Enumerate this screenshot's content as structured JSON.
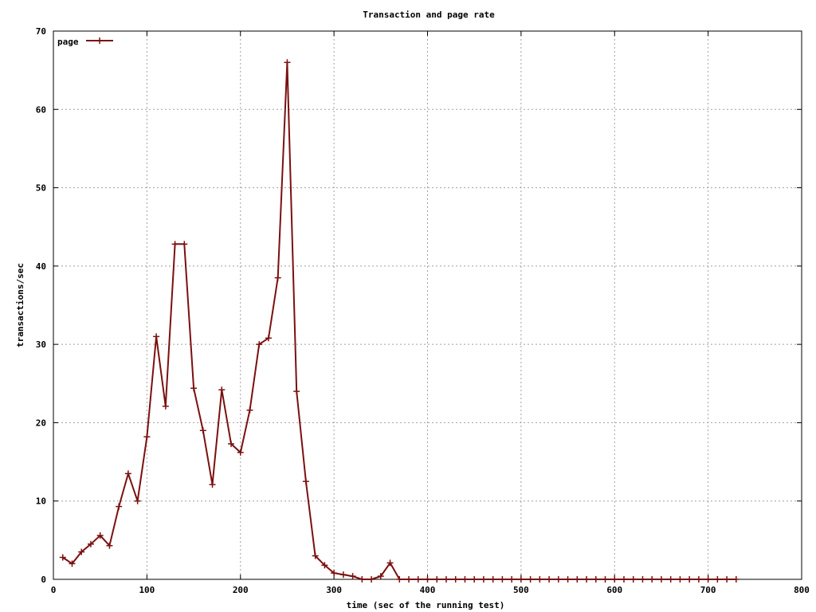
{
  "chart_data": {
    "type": "line",
    "title": "Transaction and page rate",
    "xlabel": "time (sec of the running test)",
    "ylabel": "transactions/sec",
    "xlim": [
      0,
      800
    ],
    "ylim": [
      0,
      70
    ],
    "xticks": [
      0,
      100,
      200,
      300,
      400,
      500,
      600,
      700,
      800
    ],
    "yticks": [
      0,
      10,
      20,
      30,
      40,
      50,
      60,
      70
    ],
    "grid": true,
    "legend_position": "top-left",
    "series": [
      {
        "name": "page",
        "color": "#7b1010",
        "marker": "plus",
        "x": [
          10,
          20,
          30,
          40,
          50,
          60,
          70,
          80,
          90,
          100,
          110,
          120,
          130,
          140,
          150,
          160,
          170,
          180,
          190,
          200,
          210,
          220,
          230,
          240,
          250,
          260,
          270,
          280,
          290,
          300,
          310,
          320,
          330,
          340,
          350,
          360,
          370,
          380,
          390,
          400,
          410,
          420,
          430,
          440,
          450,
          460,
          470,
          480,
          490,
          500,
          510,
          520,
          530,
          540,
          550,
          560,
          570,
          580,
          590,
          600,
          610,
          620,
          630,
          640,
          650,
          660,
          670,
          680,
          690,
          700,
          710,
          720,
          730
        ],
        "values": [
          2.8,
          2.0,
          3.5,
          4.5,
          5.6,
          4.3,
          9.3,
          13.5,
          10.0,
          18.2,
          31.0,
          22.1,
          42.8,
          42.8,
          24.4,
          19.0,
          12.1,
          24.2,
          17.3,
          16.2,
          21.6,
          30.0,
          30.8,
          38.5,
          66.0,
          24.0,
          12.5,
          3.0,
          1.8,
          0.8,
          0.6,
          0.4,
          0.0,
          0.0,
          0.4,
          2.1,
          0.0,
          0.0,
          0.0,
          0.0,
          0.0,
          0.0,
          0.0,
          0.0,
          0.0,
          0.0,
          0.0,
          0.0,
          0.0,
          0.0,
          0.0,
          0.0,
          0.0,
          0.0,
          0.0,
          0.0,
          0.0,
          0.0,
          0.0,
          0.0,
          0.0,
          0.0,
          0.0,
          0.0,
          0.0,
          0.0,
          0.0,
          0.0,
          0.0,
          0.0,
          0.0,
          0.0,
          0.0
        ]
      }
    ]
  }
}
